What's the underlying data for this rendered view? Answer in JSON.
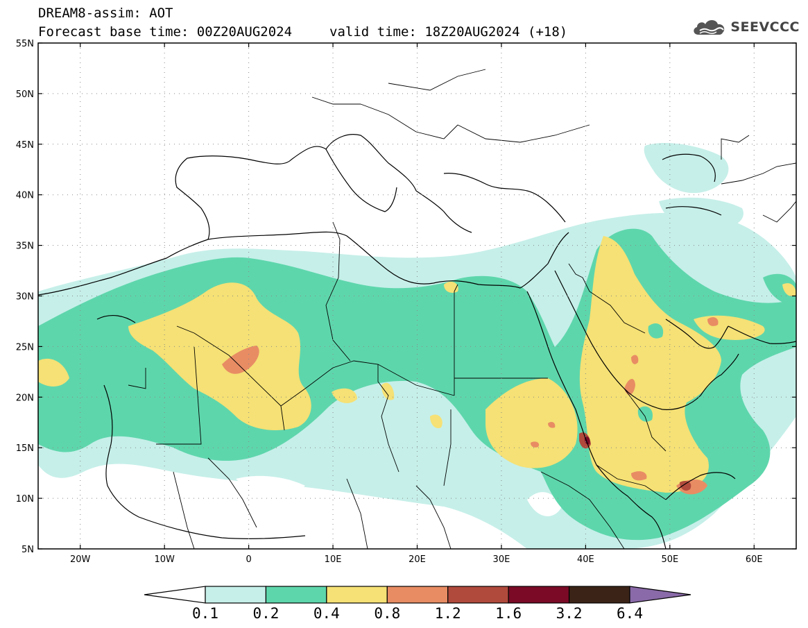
{
  "header": {
    "title": "DREAM8-assim: AOT",
    "base_time": "Forecast base time: 00Z20AUG2024",
    "valid_time": "valid time: 18Z20AUG2024 (+18)"
  },
  "logo": {
    "text": "SEEVCCC",
    "icon": "cloud-icon"
  },
  "map": {
    "projection": "lat-lon",
    "lon_range": [
      -25,
      65
    ],
    "lat_range": [
      5,
      55
    ],
    "lon_ticks": [
      {
        "value": -20,
        "label": "20W"
      },
      {
        "value": -10,
        "label": "10W"
      },
      {
        "value": 0,
        "label": "0"
      },
      {
        "value": 10,
        "label": "10E"
      },
      {
        "value": 20,
        "label": "20E"
      },
      {
        "value": 30,
        "label": "30E"
      },
      {
        "value": 40,
        "label": "40E"
      },
      {
        "value": 50,
        "label": "50E"
      },
      {
        "value": 60,
        "label": "60E"
      }
    ],
    "lat_ticks": [
      {
        "value": 5,
        "label": "5N"
      },
      {
        "value": 10,
        "label": "10N"
      },
      {
        "value": 15,
        "label": "15N"
      },
      {
        "value": 20,
        "label": "20N"
      },
      {
        "value": 25,
        "label": "25N"
      },
      {
        "value": 30,
        "label": "30N"
      },
      {
        "value": 35,
        "label": "35N"
      },
      {
        "value": 40,
        "label": "40N"
      },
      {
        "value": 45,
        "label": "45N"
      },
      {
        "value": 50,
        "label": "50N"
      },
      {
        "value": 55,
        "label": "55N"
      }
    ],
    "gridlines": "dotted"
  },
  "colorbar": {
    "labels": [
      "0.1",
      "0.2",
      "0.4",
      "0.8",
      "1.2",
      "1.6",
      "3.2",
      "6.4"
    ],
    "colors": [
      "#ffffff",
      "#c6efe9",
      "#5ed6ac",
      "#f5e175",
      "#e88c64",
      "#b04a3c",
      "#7a0a26",
      "#3b2417",
      "#8a6aa8"
    ]
  },
  "colors": {
    "aot_0_1": "#c6efe9",
    "aot_0_2": "#5ed6ac",
    "aot_0_4": "#f5e175",
    "aot_0_8": "#e88c64",
    "aot_1_2": "#b04a3c",
    "aot_1_6": "#7a0a26"
  }
}
